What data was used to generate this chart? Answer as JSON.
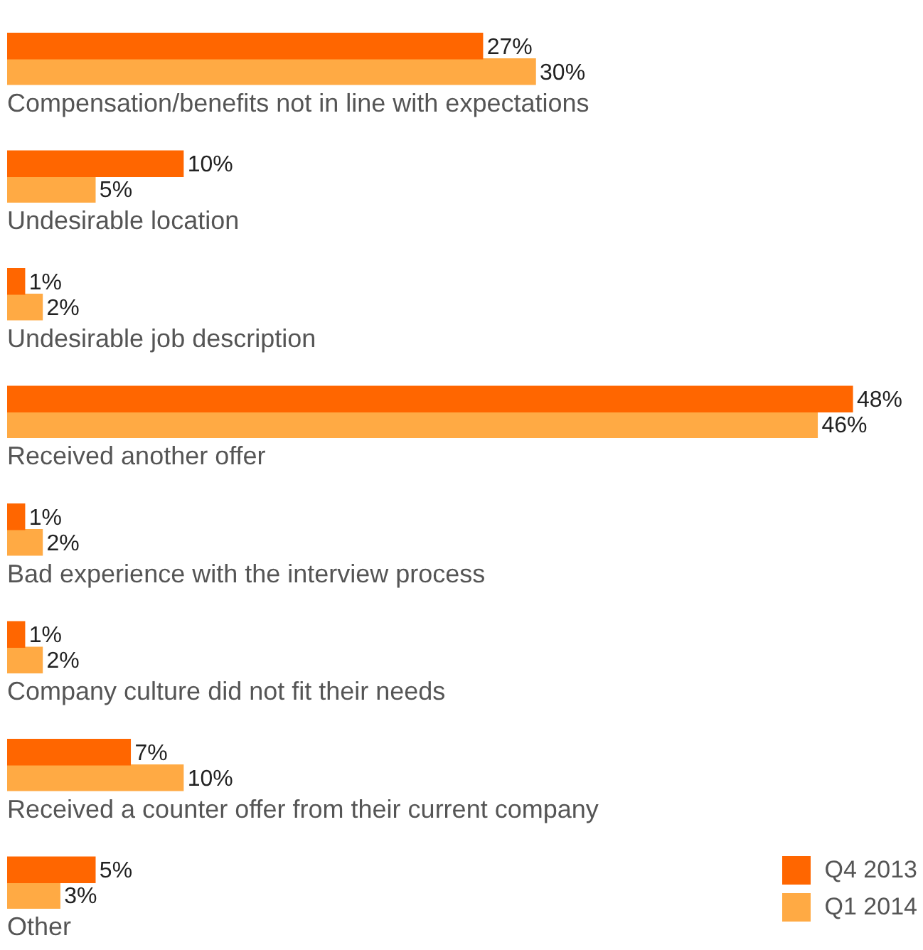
{
  "chart_data": {
    "type": "bar",
    "orientation": "horizontal",
    "categories": [
      "Compensation/benefits not in line with expectations",
      "Undesirable location",
      "Undesirable job description",
      "Received another offer",
      "Bad experience with the interview process",
      "Company culture did not fit their needs",
      "Received a counter offer from their current company",
      "Other"
    ],
    "series": [
      {
        "name": "Q4 2013",
        "color": "#ff6600",
        "values": [
          27,
          10,
          1,
          48,
          1,
          1,
          7,
          5
        ],
        "value_labels": [
          "27%",
          "10%",
          "1%",
          "48%",
          "1%",
          "1%",
          "7%",
          "5%"
        ]
      },
      {
        "name": "Q1 2014",
        "color": "#ffaa44",
        "values": [
          30,
          5,
          2,
          46,
          2,
          2,
          10,
          3
        ],
        "value_labels": [
          "30%",
          "5%",
          "2%",
          "46%",
          "2%",
          "2%",
          "10%",
          "3%"
        ]
      }
    ],
    "legend": "bottom right"
  }
}
